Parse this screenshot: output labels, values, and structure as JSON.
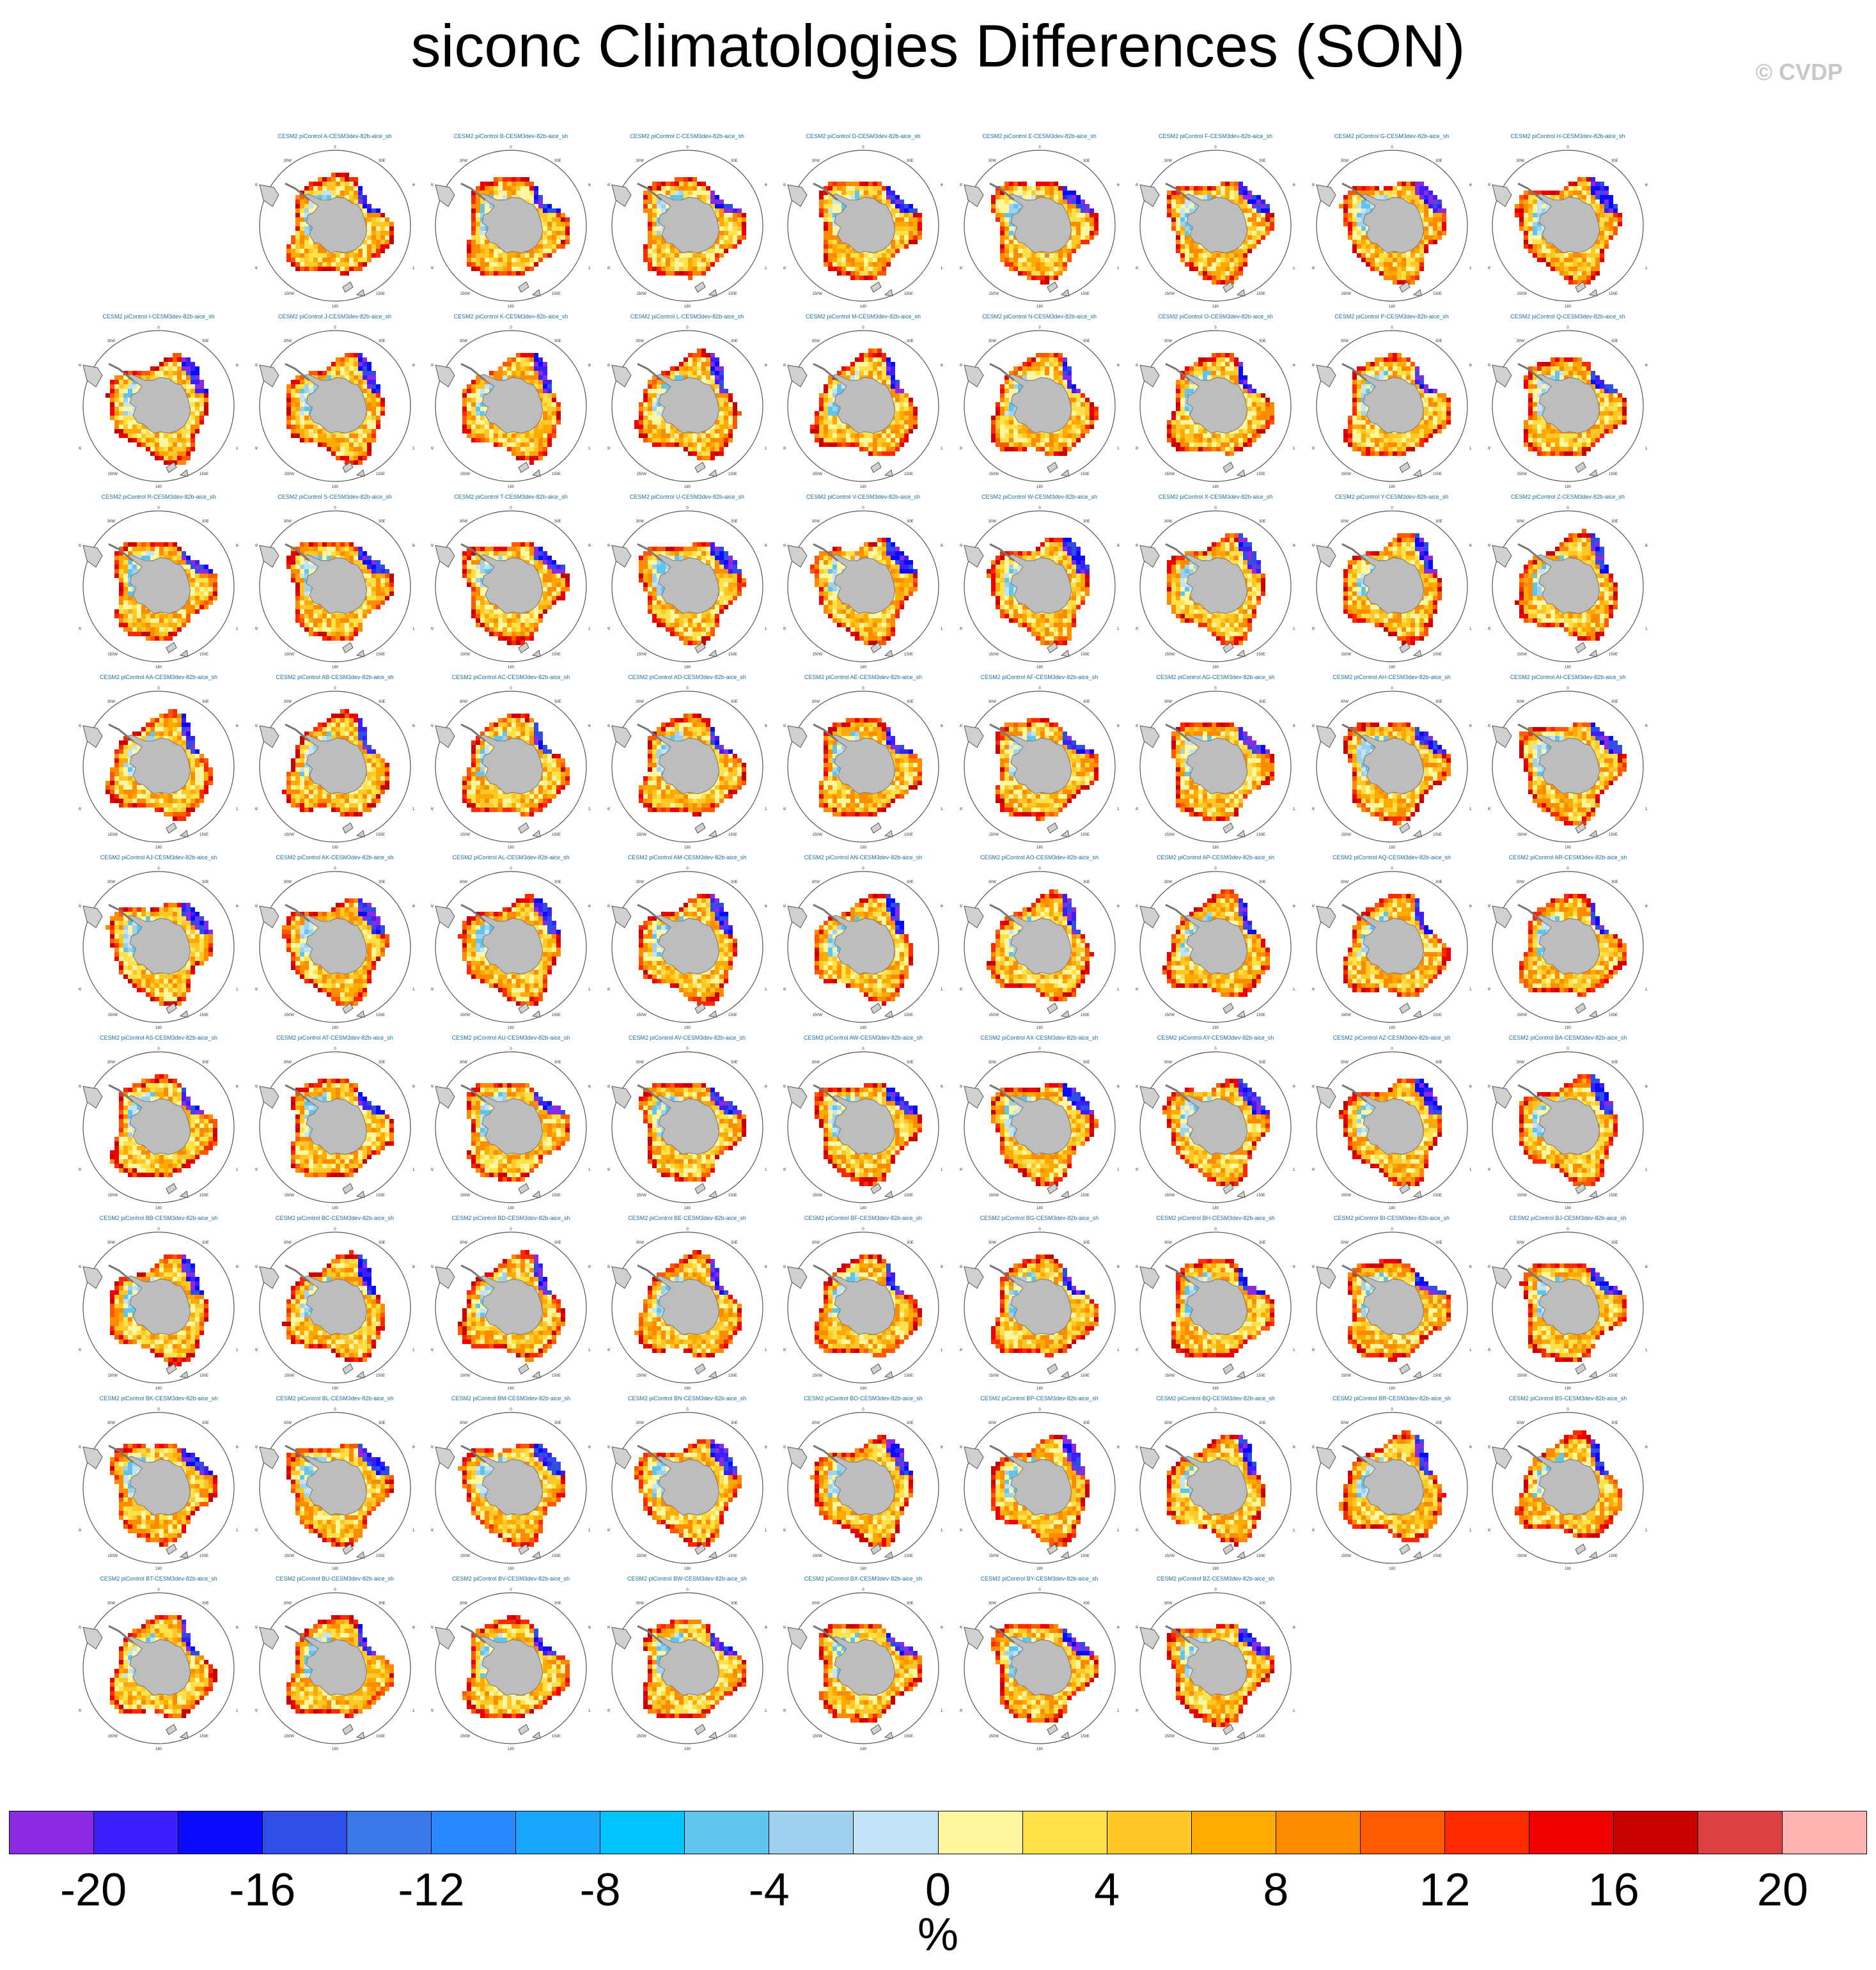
{
  "title": "siconc Climatologies Differences (SON)",
  "watermark": "© CVDP",
  "panel_layout": {
    "rows": [
      [
        "A",
        "B",
        "C",
        "D",
        "E",
        "F",
        "G",
        "H"
      ],
      [
        "I",
        "J",
        "K",
        "L",
        "M",
        "N",
        "O",
        "P",
        "Q"
      ],
      [
        "R",
        "S",
        "T",
        "U",
        "V",
        "W",
        "X",
        "Y",
        "Z"
      ],
      [
        "AA",
        "AB",
        "AC",
        "AD",
        "AE",
        "AF",
        "AG",
        "AH",
        "AI"
      ],
      [
        "AJ",
        "AK",
        "AL",
        "AM",
        "AN",
        "AO",
        "AP",
        "AQ",
        "AR"
      ],
      [
        "AS",
        "AT",
        "AU",
        "AV",
        "AW",
        "AX",
        "AY",
        "AZ",
        "BA"
      ],
      [
        "BB",
        "BC",
        "BD",
        "BE",
        "BF",
        "BG",
        "BH",
        "BI",
        "BJ"
      ],
      [
        "BK",
        "BL",
        "BM",
        "BN",
        "BO",
        "BP",
        "BQ",
        "BR",
        "BS"
      ],
      [
        "BT",
        "BU",
        "BV",
        "BW",
        "BX",
        "BY",
        "BZ"
      ]
    ],
    "first_row_offset_columns": 1
  },
  "panel_title_template": "CESM2 piControl {id}-CESM3dev-82b-aice_sh",
  "map_labels": {
    "top": "0",
    "bottom": "180",
    "upper_left": "30W",
    "left_upper": "60W",
    "left_lower": "120W",
    "lower_left": "150W",
    "upper_right": "30E",
    "right_upper": "60E",
    "right_lower": "120E",
    "lower_right": "150E"
  },
  "colorbar": {
    "colors": [
      "#8a2be2",
      "#3c1efa",
      "#0a0aff",
      "#2f4ee6",
      "#3a78e6",
      "#2a88ff",
      "#1aa6ff",
      "#00c4ff",
      "#5fc4ee",
      "#9fd1ee",
      "#c2e4f6",
      "#fff6a0",
      "#ffe14a",
      "#ffc828",
      "#ffaa00",
      "#ff8c00",
      "#ff5a00",
      "#ff2a00",
      "#ee0000",
      "#c80000",
      "#dc4040",
      "#ffb4b4"
    ],
    "tick_labels": [
      "-20",
      "-16",
      "-12",
      "-8",
      "-4",
      "0",
      "4",
      "8",
      "12",
      "16",
      "20"
    ],
    "unit": "%"
  }
}
